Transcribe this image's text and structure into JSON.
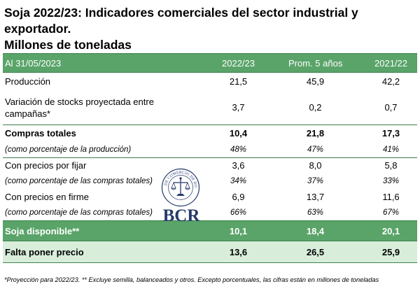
{
  "title": {
    "line1": "Soja 2022/23: Indicadores comerciales del sector industrial y exportador.",
    "line2": "Millones de toneladas"
  },
  "table": {
    "header": {
      "label": "Al 31/05/2023",
      "col1": "2022/23",
      "col2": "Prom. 5 años",
      "col3": "2021/22"
    },
    "rows": [
      {
        "label": "Producción",
        "v1": "21,5",
        "v2": "45,9",
        "v3": "42,2"
      },
      {
        "label": "Variación de stocks proyectada entre campañas*",
        "v1": "3,7",
        "v2": "0,2",
        "v3": "0,7"
      },
      {
        "label": "Compras totales",
        "v1": "10,4",
        "v2": "21,8",
        "v3": "17,3"
      },
      {
        "label": "(como porcentaje de la producción)",
        "v1": "48%",
        "v2": "47%",
        "v3": "41%"
      },
      {
        "label": "Con precios por fijar",
        "v1": "3,6",
        "v2": "8,0",
        "v3": "5,8"
      },
      {
        "label": "(como porcentaje de las compras totales)",
        "v1": "34%",
        "v2": "37%",
        "v3": "33%"
      },
      {
        "label": "Con precios en firme",
        "v1": "6,9",
        "v2": "13,7",
        "v3": "11,6"
      },
      {
        "label": "(como porcentaje de las compras totales)",
        "v1": "66%",
        "v2": "63%",
        "v3": "67%"
      },
      {
        "label": "Soja disponible**",
        "v1": "10,1",
        "v2": "18,4",
        "v3": "20,1"
      },
      {
        "label": "Falta poner precio",
        "v1": "13,6",
        "v2": "26,5",
        "v3": "25,9"
      }
    ]
  },
  "logo": {
    "seal_text": "BOLSA DE COMERCIO DE ROSARIO",
    "acronym": "BCR",
    "color": "#243a6b"
  },
  "footnote": "*Proyección para 2022/23. ** Excluye semilla, balanceados y otros. Excepto porcentuales, las cifras están en millones de toneladas",
  "colors": {
    "header_green": "#5aa469",
    "light_green": "#d8eedb",
    "rule_green": "#3d7f4c"
  }
}
